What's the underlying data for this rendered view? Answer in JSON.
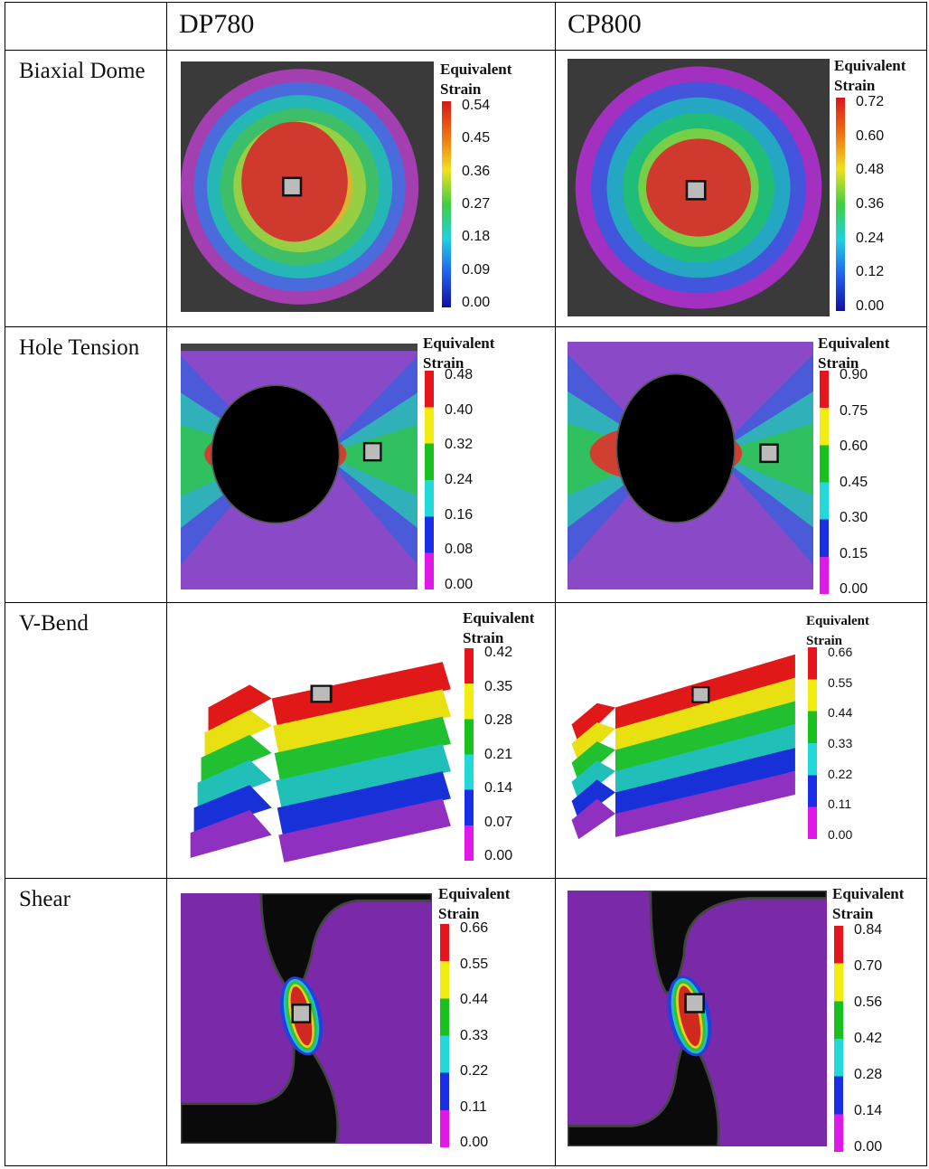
{
  "table": {
    "header": [
      "DP780",
      "CP800"
    ],
    "rows": [
      {
        "label": "Biaxial Dome",
        "cells": [
          {
            "legend_title": "Equivalent Strain",
            "ticks": [
              "0.54",
              "0.45",
              "0.36",
              "0.27",
              "0.18",
              "0.09",
              "0.00"
            ]
          },
          {
            "legend_title": "Equivalent Strain",
            "ticks": [
              "0.72",
              "0.60",
              "0.48",
              "0.36",
              "0.24",
              "0.12",
              "0.00"
            ]
          }
        ]
      },
      {
        "label": "Hole Tension",
        "cells": [
          {
            "legend_title": "Equivalent Strain",
            "ticks": [
              "0.48",
              "0.40",
              "0.32",
              "0.24",
              "0.16",
              "0.08",
              "0.00"
            ]
          },
          {
            "legend_title": "Equivalent Strain",
            "ticks": [
              "0.90",
              "0.75",
              "0.60",
              "0.45",
              "0.30",
              "0.15",
              "0.00"
            ]
          }
        ]
      },
      {
        "label": "V-Bend",
        "cells": [
          {
            "legend_title": "Equivalent Strain",
            "ticks": [
              "0.42",
              "0.35",
              "0.28",
              "0.21",
              "0.14",
              "0.07",
              "0.00"
            ]
          },
          {
            "legend_title": "Equivalent Strain",
            "ticks": [
              "0.66",
              "0.55",
              "0.44",
              "0.33",
              "0.22",
              "0.11",
              "0.00"
            ]
          }
        ]
      },
      {
        "label": "Shear",
        "cells": [
          {
            "legend_title": "Equivalent Strain",
            "ticks": [
              "0.66",
              "0.55",
              "0.44",
              "0.33",
              "0.22",
              "0.11",
              "0.00"
            ]
          },
          {
            "legend_title": "Equivalent Strain",
            "ticks": [
              "0.84",
              "0.70",
              "0.56",
              "0.42",
              "0.28",
              "0.14",
              "0.00"
            ]
          }
        ]
      }
    ]
  }
}
